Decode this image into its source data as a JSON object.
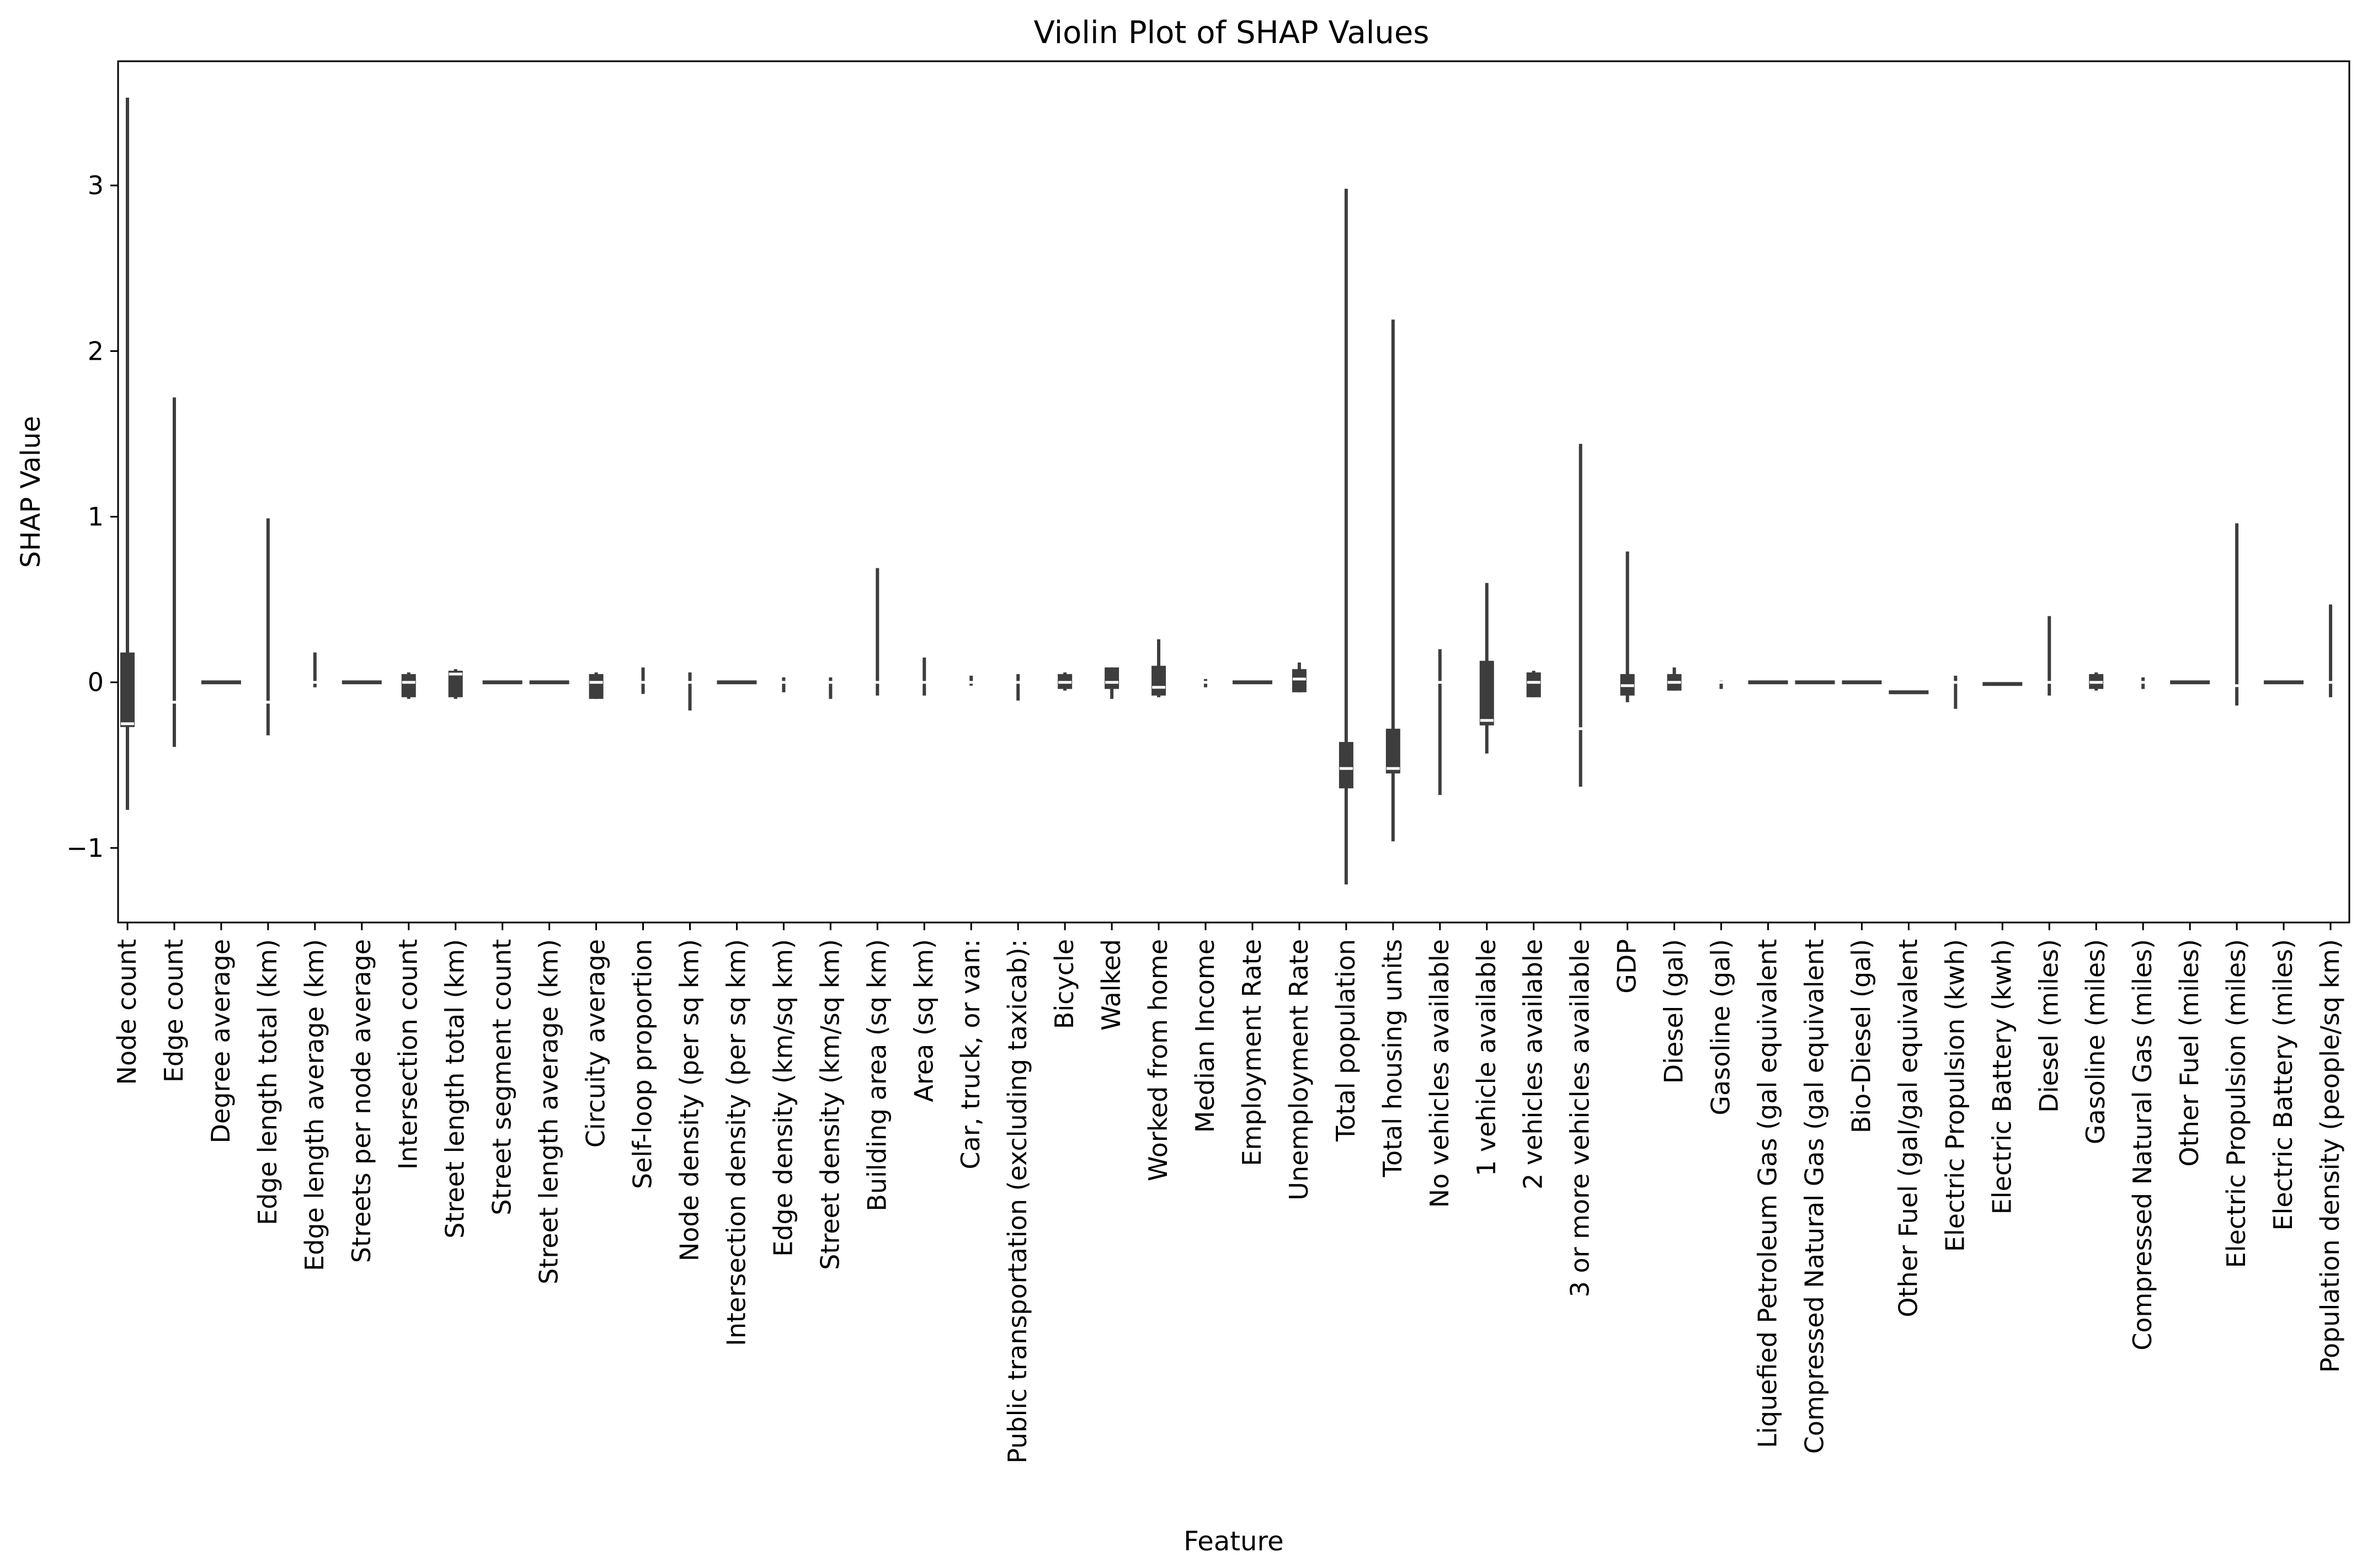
{
  "chart_data": {
    "type": "violin",
    "title": "Violin Plot of SHAP Values",
    "xlabel": "Feature",
    "ylabel": "SHAP Value",
    "ylim": [
      -1.45,
      3.75
    ],
    "yticks": [
      -1,
      0,
      1,
      2,
      3
    ],
    "ytick_labels": [
      "−1",
      "0",
      "1",
      "2",
      "3"
    ],
    "grid": false,
    "legend": "none",
    "color": "#3d3d3d",
    "categories": [
      "Node count",
      "Edge count",
      "Degree average",
      "Edge length total (km)",
      "Edge length average (km)",
      "Streets per node average",
      "Intersection count",
      "Street length total (km)",
      "Street segment count",
      "Street length average (km)",
      "Circuity average",
      "Self-loop proportion",
      "Node density (per sq km)",
      "Intersection density (per sq km)",
      "Edge density (km/sq km)",
      "Street density (km/sq km)",
      "Building area (sq km)",
      "Area (sq km)",
      "Car, truck, or van:",
      "Public transportation (excluding taxicab):",
      "Bicycle",
      "Walked",
      "Worked from home",
      "Median Income",
      "Employment Rate",
      "Unemployment Rate",
      "Total population",
      "Total housing units",
      "No vehicles available",
      "1 vehicle available",
      "2 vehicles available",
      "3 or more vehicles available",
      "GDP",
      "Diesel (gal)",
      "Gasoline (gal)",
      "Liquefied Petroleum Gas (gal equivalent",
      "Compressed Natural Gas (gal equivalent",
      "Bio-Diesel (gal)",
      "Other Fuel (gal/gal equivalent",
      "Electric Propulsion (kwh)",
      "Electric Battery (kwh)",
      "Diesel (miles)",
      "Gasoline (miles)",
      "Compressed Natural Gas (miles)",
      "Other Fuel (miles)",
      "Electric Propulsion (miles)",
      "Electric Battery (miles)",
      "Population density (people/sq km)"
    ],
    "violins": [
      {
        "min": -0.77,
        "q1": -0.27,
        "median": -0.25,
        "q3": 0.18,
        "max": 3.53
      },
      {
        "min": -0.39,
        "q1": -0.12,
        "median": -0.12,
        "q3": -0.12,
        "max": 1.72
      },
      {
        "min": 0.0,
        "q1": 0.0,
        "median": 0.0,
        "q3": 0.0,
        "max": 0.0
      },
      {
        "min": -0.32,
        "q1": -0.12,
        "median": -0.12,
        "q3": -0.12,
        "max": 0.99
      },
      {
        "min": -0.03,
        "q1": 0.0,
        "median": 0.0,
        "q3": 0.0,
        "max": 0.18
      },
      {
        "min": 0.0,
        "q1": 0.0,
        "median": 0.0,
        "q3": 0.0,
        "max": 0.0
      },
      {
        "min": -0.1,
        "q1": -0.09,
        "median": 0.0,
        "q3": 0.05,
        "max": 0.06
      },
      {
        "min": -0.1,
        "q1": -0.09,
        "median": 0.05,
        "q3": 0.07,
        "max": 0.08
      },
      {
        "min": 0.0,
        "q1": 0.0,
        "median": 0.0,
        "q3": 0.0,
        "max": 0.0
      },
      {
        "min": 0.0,
        "q1": 0.0,
        "median": 0.0,
        "q3": 0.0,
        "max": 0.0
      },
      {
        "min": -0.1,
        "q1": -0.1,
        "median": 0.0,
        "q3": 0.05,
        "max": 0.06
      },
      {
        "min": -0.07,
        "q1": 0.0,
        "median": 0.0,
        "q3": 0.0,
        "max": 0.09
      },
      {
        "min": -0.17,
        "q1": 0.0,
        "median": 0.0,
        "q3": 0.0,
        "max": 0.06
      },
      {
        "min": 0.0,
        "q1": 0.0,
        "median": 0.0,
        "q3": 0.0,
        "max": 0.0
      },
      {
        "min": -0.06,
        "q1": 0.0,
        "median": 0.0,
        "q3": 0.0,
        "max": 0.03
      },
      {
        "min": -0.1,
        "q1": 0.0,
        "median": 0.0,
        "q3": 0.0,
        "max": 0.03
      },
      {
        "min": -0.08,
        "q1": 0.0,
        "median": 0.0,
        "q3": 0.0,
        "max": 0.69
      },
      {
        "min": -0.08,
        "q1": 0.0,
        "median": 0.0,
        "q3": 0.0,
        "max": 0.15
      },
      {
        "min": -0.02,
        "q1": 0.0,
        "median": 0.0,
        "q3": 0.0,
        "max": 0.04
      },
      {
        "min": -0.11,
        "q1": 0.0,
        "median": 0.0,
        "q3": 0.0,
        "max": 0.05
      },
      {
        "min": -0.05,
        "q1": -0.04,
        "median": 0.0,
        "q3": 0.05,
        "max": 0.06
      },
      {
        "min": -0.1,
        "q1": -0.04,
        "median": 0.0,
        "q3": 0.09,
        "max": 0.09
      },
      {
        "min": -0.09,
        "q1": -0.08,
        "median": -0.03,
        "q3": 0.1,
        "max": 0.26
      },
      {
        "min": -0.03,
        "q1": 0.0,
        "median": 0.0,
        "q3": 0.0,
        "max": 0.02
      },
      {
        "min": 0.0,
        "q1": 0.0,
        "median": 0.0,
        "q3": 0.0,
        "max": 0.0
      },
      {
        "min": -0.06,
        "q1": -0.06,
        "median": 0.02,
        "q3": 0.08,
        "max": 0.12
      },
      {
        "min": -1.22,
        "q1": -0.64,
        "median": -0.52,
        "q3": -0.36,
        "max": 2.98
      },
      {
        "min": -0.96,
        "q1": -0.55,
        "median": -0.52,
        "q3": -0.28,
        "max": 2.19
      },
      {
        "min": -0.68,
        "q1": 0.0,
        "median": 0.0,
        "q3": 0.0,
        "max": 0.2
      },
      {
        "min": -0.43,
        "q1": -0.26,
        "median": -0.23,
        "q3": 0.13,
        "max": 0.6
      },
      {
        "min": -0.09,
        "q1": -0.09,
        "median": 0.0,
        "q3": 0.06,
        "max": 0.07
      },
      {
        "min": -0.63,
        "q1": -0.28,
        "median": -0.28,
        "q3": -0.28,
        "max": 1.44
      },
      {
        "min": -0.12,
        "q1": -0.08,
        "median": -0.02,
        "q3": 0.05,
        "max": 0.79
      },
      {
        "min": -0.05,
        "q1": -0.05,
        "median": 0.0,
        "q3": 0.05,
        "max": 0.09
      },
      {
        "min": -0.04,
        "q1": 0.0,
        "median": 0.0,
        "q3": 0.0,
        "max": 0.01
      },
      {
        "min": 0.0,
        "q1": 0.0,
        "median": 0.0,
        "q3": 0.0,
        "max": 0.0
      },
      {
        "min": 0.0,
        "q1": 0.0,
        "median": 0.0,
        "q3": 0.0,
        "max": 0.0
      },
      {
        "min": 0.0,
        "q1": 0.0,
        "median": 0.0,
        "q3": 0.0,
        "max": 0.0
      },
      {
        "min": -0.06,
        "q1": -0.06,
        "median": -0.06,
        "q3": -0.06,
        "max": -0.05
      },
      {
        "min": -0.16,
        "q1": 0.0,
        "median": 0.0,
        "q3": 0.0,
        "max": 0.04
      },
      {
        "min": -0.02,
        "q1": -0.01,
        "median": -0.01,
        "q3": -0.01,
        "max": -0.01
      },
      {
        "min": -0.08,
        "q1": 0.0,
        "median": 0.0,
        "q3": 0.0,
        "max": 0.4
      },
      {
        "min": -0.05,
        "q1": -0.04,
        "median": 0.0,
        "q3": 0.05,
        "max": 0.06
      },
      {
        "min": -0.04,
        "q1": 0.0,
        "median": 0.0,
        "q3": 0.0,
        "max": 0.03
      },
      {
        "min": 0.0,
        "q1": 0.0,
        "median": 0.0,
        "q3": 0.0,
        "max": 0.0
      },
      {
        "min": -0.14,
        "q1": -0.02,
        "median": -0.02,
        "q3": -0.02,
        "max": 0.96
      },
      {
        "min": 0.0,
        "q1": 0.0,
        "median": 0.0,
        "q3": 0.0,
        "max": 0.0
      },
      {
        "min": -0.09,
        "q1": 0.0,
        "median": 0.0,
        "q3": 0.0,
        "max": 0.47
      }
    ]
  }
}
